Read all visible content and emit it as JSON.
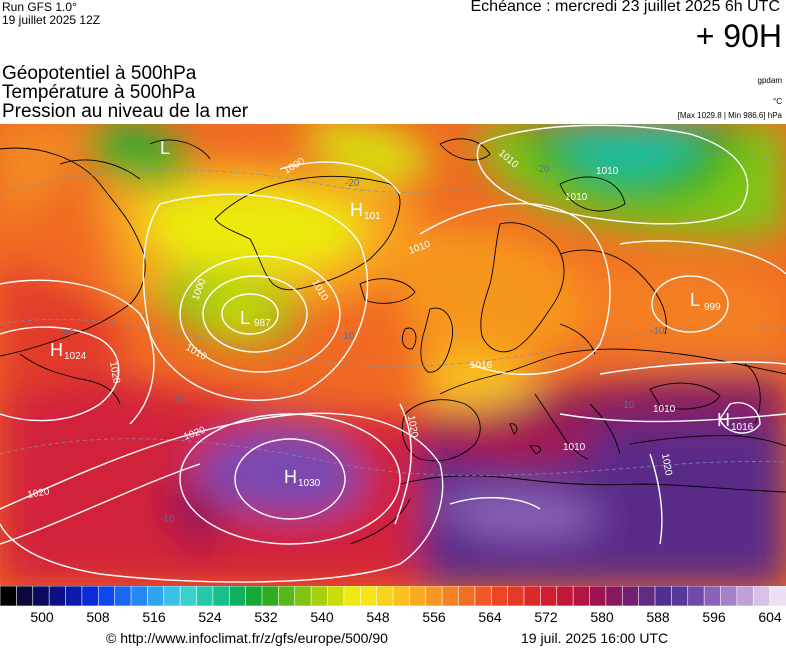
{
  "header": {
    "run_line1": "Run GFS 1.0°",
    "run_line2": "19 juillet 2025 12Z",
    "echeance": "Echéance : mercredi 23 juillet 2025 6h UTC",
    "lead_time": "+ 90H"
  },
  "titles": {
    "line1": "Géopotentiel à 500hPa",
    "line2": "Température à 500hPa",
    "line3": "Pression au niveau de la mer"
  },
  "units": {
    "geopotential": "gpdam",
    "temperature": "°C",
    "pressure_range": "[Max 1029.8 | Min 986.6] hPa"
  },
  "map": {
    "pressure_centers": [
      {
        "type": "L",
        "value": "987"
      },
      {
        "type": "L",
        "value": "999"
      },
      {
        "type": "L",
        "value": ""
      },
      {
        "type": "H",
        "value": "1024"
      },
      {
        "type": "H",
        "value": "1030"
      },
      {
        "type": "H",
        "value": "1016"
      },
      {
        "type": "H",
        "value": "101"
      }
    ],
    "isobar_labels": [
      "1000",
      "1010",
      "1010",
      "1010",
      "1010",
      "1010",
      "1016",
      "1020",
      "1020",
      "1020",
      "1020",
      "1010",
      "1010",
      "1010",
      "1000",
      "1020"
    ],
    "temperature_labels": [
      "-20",
      "-20",
      "-10",
      "-10",
      "-10",
      "-10",
      "-10",
      "-10"
    ]
  },
  "colorbar": {
    "tick_labels": [
      "500",
      "508",
      "516",
      "524",
      "532",
      "540",
      "548",
      "556",
      "564",
      "572",
      "580",
      "588",
      "596",
      "604"
    ],
    "colors": [
      "#000000",
      "#0a0a3a",
      "#0b0b5e",
      "#0b1085",
      "#0b1aa8",
      "#0b2ad8",
      "#0c48f0",
      "#1768f5",
      "#2588f5",
      "#2fa5f0",
      "#3cc0ea",
      "#3ad0d0",
      "#26c8aa",
      "#18bf88",
      "#10b060",
      "#18a83a",
      "#30ac22",
      "#58b81a",
      "#80c414",
      "#a8cf10",
      "#ccda10",
      "#ecea10",
      "#f8e41a",
      "#f9d21c",
      "#f9c01e",
      "#f8ab20",
      "#f79622",
      "#f48224",
      "#f26e25",
      "#ef5a25",
      "#ec4625",
      "#e63a28",
      "#dc2a2a",
      "#cf1f2f",
      "#c21838",
      "#b21443",
      "#9e1350",
      "#8a185e",
      "#75206f",
      "#622a80",
      "#4f308e",
      "#56389a",
      "#6f4aa8",
      "#8a62b8",
      "#a680c8",
      "#c0a0d8",
      "#d8c0e6",
      "#ece0f2"
    ]
  },
  "footer": {
    "url": "© http://www.infoclimat.fr/z/gfs/europe/500/90",
    "generated": "19 juil. 2025 16:00 UTC"
  }
}
